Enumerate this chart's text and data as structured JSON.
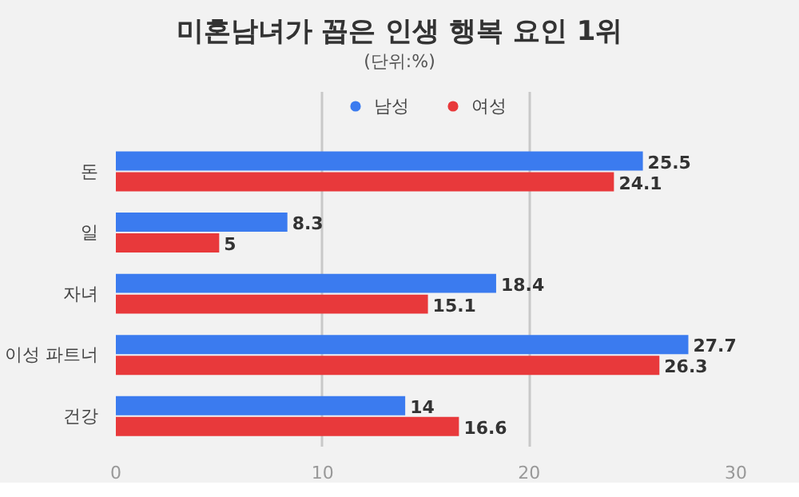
{
  "chart_data": {
    "type": "bar",
    "orientation": "horizontal",
    "title": "미혼남녀가 꼽은 인생 행복 요인 1위",
    "subtitle": "(단위:%)",
    "categories": [
      "돈",
      "일",
      "자녀",
      "이성 파트너",
      "건강"
    ],
    "series": [
      {
        "name": "남성",
        "color": "#3b7bef",
        "values": [
          25.5,
          8.3,
          18.4,
          27.7,
          14
        ]
      },
      {
        "name": "여성",
        "color": "#e8393b",
        "values": [
          24.1,
          5,
          15.1,
          26.3,
          16.6
        ]
      }
    ],
    "xlim": [
      0,
      30
    ],
    "xticks": [
      0,
      10,
      20,
      30
    ],
    "grid": "x",
    "legend": "top",
    "data_labels": true,
    "marker": "circle"
  }
}
